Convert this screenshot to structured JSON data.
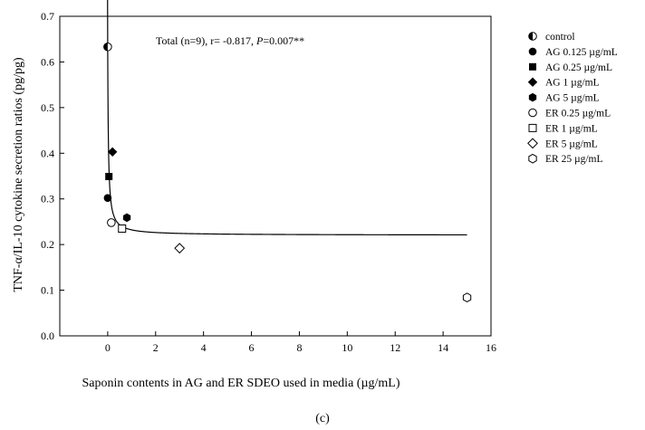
{
  "chart_data": {
    "type": "scatter",
    "xlabel": "Saponin contents in AG and ER SDEO used in media (µg/mL)",
    "ylabel": "TNF-α/IL-10 cytokine secretion ratios (pg/pg)",
    "xlim": [
      -2,
      16
    ],
    "ylim": [
      0,
      0.7
    ],
    "x_ticks": [
      0,
      2,
      4,
      6,
      8,
      10,
      12,
      14,
      16
    ],
    "y_ticks": [
      0.0,
      0.1,
      0.2,
      0.3,
      0.4,
      0.5,
      0.6,
      0.7
    ],
    "grid": false,
    "legend_position": "right",
    "annotation": {
      "prefix": "Total (n=9), r= -0.817, ",
      "p_label": "P",
      "suffix": "=0.007**"
    },
    "series": [
      {
        "name": "control",
        "marker": "half-circle",
        "x": [
          0.0
        ],
        "y": [
          0.633
        ]
      },
      {
        "name": "AG 0.125 µg/mL",
        "marker": "circle-filled",
        "x": [
          0.0
        ],
        "y": [
          0.302
        ]
      },
      {
        "name": "AG 0.25 µg/mL",
        "marker": "square-filled",
        "x": [
          0.05
        ],
        "y": [
          0.349
        ]
      },
      {
        "name": "AG 1 µg/mL",
        "marker": "diamond-filled",
        "x": [
          0.2
        ],
        "y": [
          0.403
        ]
      },
      {
        "name": "AG 5 µg/mL",
        "marker": "hexagon-filled",
        "x": [
          0.8
        ],
        "y": [
          0.259
        ]
      },
      {
        "name": "ER 0.25 µg/mL",
        "marker": "circle-open",
        "x": [
          0.15
        ],
        "y": [
          0.248
        ]
      },
      {
        "name": "ER 1 µg/mL",
        "marker": "square-open",
        "x": [
          0.6
        ],
        "y": [
          0.235
        ]
      },
      {
        "name": "ER 5 µg/mL",
        "marker": "diamond-open",
        "x": [
          3.0
        ],
        "y": [
          0.192
        ]
      },
      {
        "name": "ER 25 µg/mL",
        "marker": "hexagon-open",
        "x": [
          15.0
        ],
        "y": [
          0.084
        ]
      }
    ],
    "fit_curve": {
      "type": "hyperbolic-decay",
      "y0": 0.2204,
      "a": 0.0121,
      "c": 0.029,
      "x_range": [
        -0.01,
        15.0
      ]
    },
    "panel_label": "(c)"
  }
}
